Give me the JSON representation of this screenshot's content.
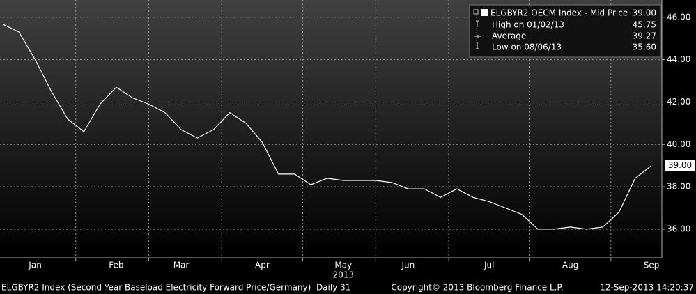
{
  "chart_data": {
    "type": "line",
    "categories": [
      null,
      null,
      "Jan",
      null,
      null,
      null,
      null,
      "Feb",
      null,
      null,
      null,
      "Mar",
      null,
      null,
      null,
      null,
      "Apr",
      null,
      null,
      null,
      null,
      "May",
      null,
      null,
      null,
      "Jun",
      null,
      null,
      null,
      null,
      "Jul",
      null,
      null,
      null,
      null,
      "Aug",
      null,
      null,
      null,
      null,
      "Sep"
    ],
    "x_sublabel": "2013",
    "series": [
      {
        "name": "ELGBYR2 OECM Index - Mid Price",
        "color": "#ffffff",
        "values": [
          45.67,
          45.3,
          44.0,
          42.5,
          41.2,
          40.6,
          41.9,
          42.7,
          42.2,
          41.9,
          41.5,
          40.7,
          40.3,
          40.7,
          41.5,
          41.0,
          40.1,
          38.6,
          38.6,
          38.1,
          38.4,
          38.3,
          38.3,
          38.3,
          38.2,
          37.9,
          37.9,
          37.5,
          37.9,
          37.5,
          37.3,
          37.0,
          36.7,
          36.0,
          36.0,
          36.1,
          36.0,
          36.1,
          36.8,
          38.4,
          39.0
        ],
        "last_value_label": "39.00"
      }
    ],
    "legend_last": "39.00",
    "legend_stats": [
      {
        "label": "High on 01/02/13",
        "value": "45.75"
      },
      {
        "label": "Average",
        "value": "39.27"
      },
      {
        "label": "Low on 08/06/13",
        "value": "35.60"
      }
    ],
    "ylim": [
      34.65,
      46.65
    ],
    "yticks": [
      {
        "value": 36,
        "label": "36.00"
      },
      {
        "value": 38,
        "label": "38.00"
      },
      {
        "value": 40,
        "label": "40.00"
      },
      {
        "value": 42,
        "label": "42.00"
      },
      {
        "value": 44,
        "label": "44.00"
      },
      {
        "value": 46,
        "label": "46.00"
      }
    ],
    "grid": true,
    "footer": {
      "left": "ELGBYR2 Index (Second Year Baseload Electricity Forward Price/Germany)  Daily 31",
      "center": "Copyright© 2013 Bloomberg Finance L.P.",
      "right": "12-Sep-2013 14:20:37"
    }
  }
}
